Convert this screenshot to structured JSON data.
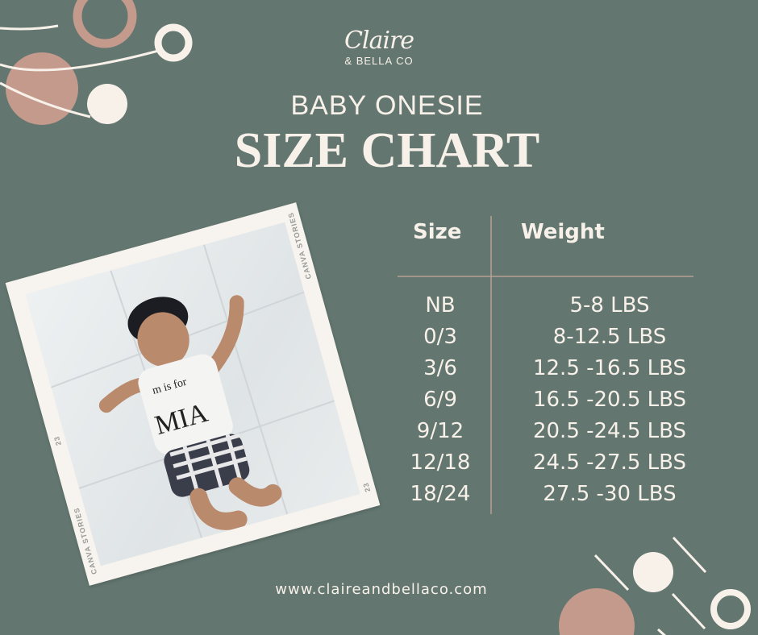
{
  "colors": {
    "background": "#637670",
    "accent_pink": "#c49a8c",
    "cream": "#f8f1ea"
  },
  "logo": {
    "script": "Claire",
    "sub": "& BELLA CO"
  },
  "header": {
    "subtitle": "BABY ONESIE",
    "title": "SIZE CHART"
  },
  "photo": {
    "shirt_line1": "m is for",
    "shirt_line2": "MIA",
    "frame_brand": "CANVA STORIES",
    "frame_number": "23"
  },
  "table": {
    "headers": [
      "Size",
      "Weight"
    ],
    "rows": [
      {
        "size": "NB",
        "weight": "5-8 LBS"
      },
      {
        "size": "0/3",
        "weight": "8-12.5 LBS"
      },
      {
        "size": "3/6",
        "weight": "12.5 -16.5 LBS"
      },
      {
        "size": "6/9",
        "weight": "16.5 -20.5 LBS"
      },
      {
        "size": "9/12",
        "weight": "20.5 -24.5 LBS"
      },
      {
        "size": "12/18",
        "weight": "24.5 -27.5 LBS"
      },
      {
        "size": "18/24",
        "weight": "27.5 -30 LBS"
      }
    ]
  },
  "footer": {
    "url": "www.claireandbellaco.com"
  }
}
